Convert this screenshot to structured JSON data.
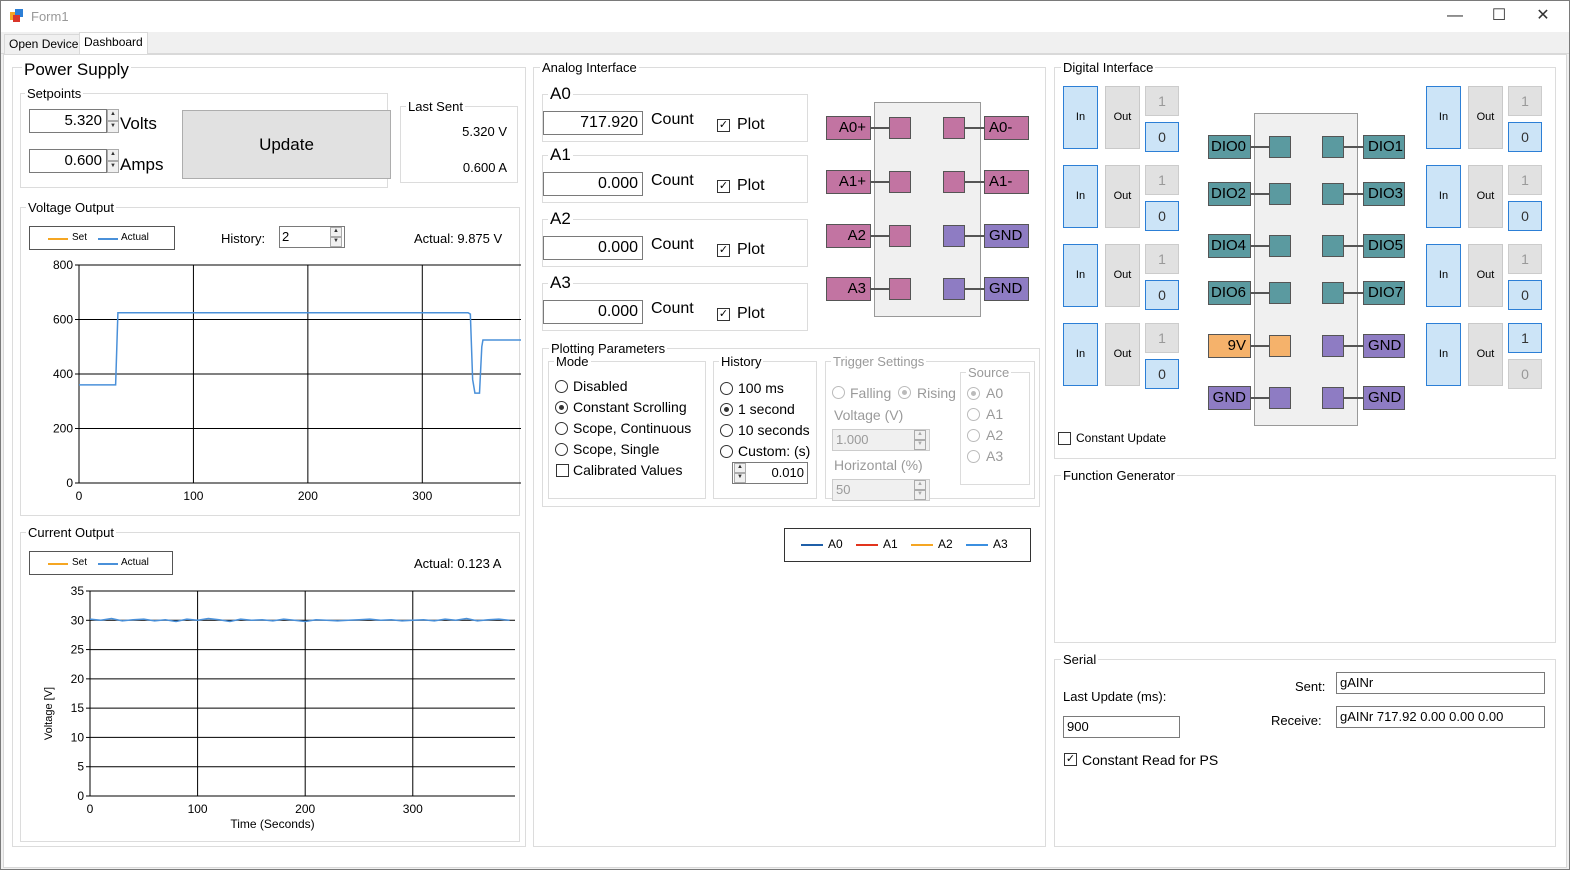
{
  "window": {
    "title": "Form1",
    "minimize_glyph": "—",
    "maximize_glyph": "☐",
    "close_glyph": "✕"
  },
  "tabs": [
    {
      "label": "Open Device"
    },
    {
      "label": "Dashboard",
      "active": true
    }
  ],
  "power_supply": {
    "title": "Power Supply",
    "setpoints": {
      "title": "Setpoints",
      "volts_value": "5.320",
      "volts_label": "Volts",
      "amps_value": "0.600",
      "amps_label": "Amps"
    },
    "update_label": "Update",
    "last_sent": {
      "title": "Last Sent",
      "volts": "5.320 V",
      "amps": "0.600 A"
    }
  },
  "voltage_output": {
    "title": "Voltage Output",
    "legend_set": "Set",
    "legend_actual": "Actual",
    "history_label": "History:",
    "history_value": "2",
    "actual": "Actual: 9.875 V"
  },
  "current_output": {
    "title": "Current Output",
    "legend_set": "Set",
    "legend_actual": "Actual",
    "actual": "Actual: 0.123 A"
  },
  "chart_data": [
    {
      "type": "line",
      "title": "Voltage Output",
      "xlabel": "",
      "ylabel": "",
      "xlim": [
        0,
        395
      ],
      "ylim": [
        0,
        800
      ],
      "xticks": [
        "0",
        "100",
        "200",
        "300"
      ],
      "yticks": [
        "0",
        "200",
        "400",
        "600",
        "800"
      ],
      "grid": true,
      "legend": "top-left",
      "series": [
        {
          "name": "Set",
          "color": "#f5a623",
          "x": [],
          "y": []
        },
        {
          "name": "Actual",
          "color": "#4a90d9",
          "x": [
            0,
            32,
            34,
            340,
            342,
            344,
            346,
            348,
            350,
            352,
            353,
            395
          ],
          "y": [
            360,
            360,
            625,
            625,
            620,
            380,
            330,
            330,
            330,
            500,
            525,
            525
          ]
        }
      ]
    },
    {
      "type": "line",
      "title": "Current Output",
      "xlabel": "Time (Seconds)",
      "ylabel": "Voltage [V]",
      "xlim": [
        0,
        395
      ],
      "ylim": [
        0,
        35
      ],
      "xticks": [
        "0",
        "100",
        "200",
        "300"
      ],
      "yticks": [
        "0",
        "5",
        "10",
        "15",
        "20",
        "25",
        "30",
        "35"
      ],
      "grid": true,
      "legend": "top-left",
      "series": [
        {
          "name": "Set",
          "color": "#f5a623",
          "x": [],
          "y": []
        },
        {
          "name": "Actual",
          "color": "#4a90d9",
          "x": [
            0,
            10,
            20,
            30,
            40,
            50,
            60,
            70,
            80,
            90,
            100,
            110,
            120,
            130,
            140,
            150,
            160,
            170,
            180,
            190,
            200,
            210,
            220,
            230,
            240,
            250,
            260,
            270,
            280,
            290,
            300,
            310,
            320,
            330,
            340,
            350,
            360,
            370,
            380,
            390
          ],
          "y": [
            30.2,
            30.0,
            30.3,
            29.9,
            30.1,
            30.2,
            29.9,
            30.1,
            29.8,
            30.2,
            30.0,
            30.3,
            30.1,
            29.8,
            30.2,
            30.0,
            30.1,
            29.9,
            30.2,
            30.0,
            29.8,
            30.1,
            30.0,
            29.9,
            30.0,
            30.1,
            30.2,
            30.0,
            30.1,
            29.9,
            30.0,
            30.1,
            29.9,
            30.2,
            30.0,
            30.3,
            29.9,
            30.1,
            30.2,
            30.0
          ]
        }
      ]
    }
  ],
  "analog": {
    "title": "Analog Interface",
    "channels": [
      {
        "name": "A0",
        "value": "717.920",
        "unit": "Count",
        "plot": "Plot"
      },
      {
        "name": "A1",
        "value": "0.000",
        "unit": "Count",
        "plot": "Plot"
      },
      {
        "name": "A2",
        "value": "0.000",
        "unit": "Count",
        "plot": "Plot"
      },
      {
        "name": "A3",
        "value": "0.000",
        "unit": "Count",
        "plot": "Plot"
      }
    ],
    "pins": {
      "left": [
        "A0+",
        "A1+",
        "A2",
        "A3"
      ],
      "right": [
        "A0-",
        "A1-",
        "GND",
        "GND"
      ]
    },
    "plotting": {
      "title": "Plotting Parameters",
      "mode": {
        "title": "Mode",
        "options": [
          "Disabled",
          "Constant Scrolling",
          "Scope, Continuous",
          "Scope, Single"
        ],
        "calibrated": "Calibrated Values"
      },
      "history": {
        "title": "History",
        "options": [
          "100 ms",
          "1 second",
          "10 seconds",
          "Custom: (s)"
        ],
        "custom_value": "0.010"
      },
      "trigger": {
        "title": "Trigger Settings",
        "falling": "Falling",
        "rising": "Rising",
        "voltage_label": "Voltage (V)",
        "voltage_value": "1.000",
        "horizontal_label": "Horizontal (%)",
        "horizontal_value": "50",
        "source": {
          "title": "Source",
          "options": [
            "A0",
            "A1",
            "A2",
            "A3"
          ]
        }
      }
    },
    "legend": [
      {
        "name": "A0",
        "color": "#1f5fa8"
      },
      {
        "name": "A1",
        "color": "#e2341d"
      },
      {
        "name": "A2",
        "color": "#f5a623"
      },
      {
        "name": "A3",
        "color": "#3b8fe0"
      }
    ]
  },
  "digital": {
    "title": "Digital Interface",
    "in_label": "In",
    "out_label": "Out",
    "left_values": [
      [
        "1",
        "0"
      ],
      [
        "1",
        "0"
      ],
      [
        "1",
        "0"
      ],
      [
        "1",
        "0"
      ]
    ],
    "right_values": [
      [
        "1",
        "0"
      ],
      [
        "1",
        "0"
      ],
      [
        "1",
        "0"
      ],
      [
        "1",
        "0"
      ]
    ],
    "pins": {
      "left": [
        "DIO0",
        "DIO2",
        "DIO4",
        "DIO6",
        "9V",
        "GND"
      ],
      "right": [
        "DIO1",
        "DIO3",
        "DIO5",
        "DIO7",
        "GND",
        "GND"
      ]
    },
    "constant_update": "Constant Update",
    "colors": {
      "dio": "#5b9aa0",
      "power": "#f5b26b",
      "gnd": "#8e7cc3",
      "analog": "#c274a2"
    }
  },
  "function_generator": {
    "title": "Function Generator"
  },
  "serial": {
    "title": "Serial",
    "sent_label": "Sent:",
    "sent_value": "gAINr",
    "receive_label": "Receive:",
    "receive_value": "gAINr 717.92 0.00 0.00 0.00",
    "last_update_label": "Last Update (ms):",
    "last_update_value": "900",
    "constant_read": "Constant Read for PS"
  }
}
